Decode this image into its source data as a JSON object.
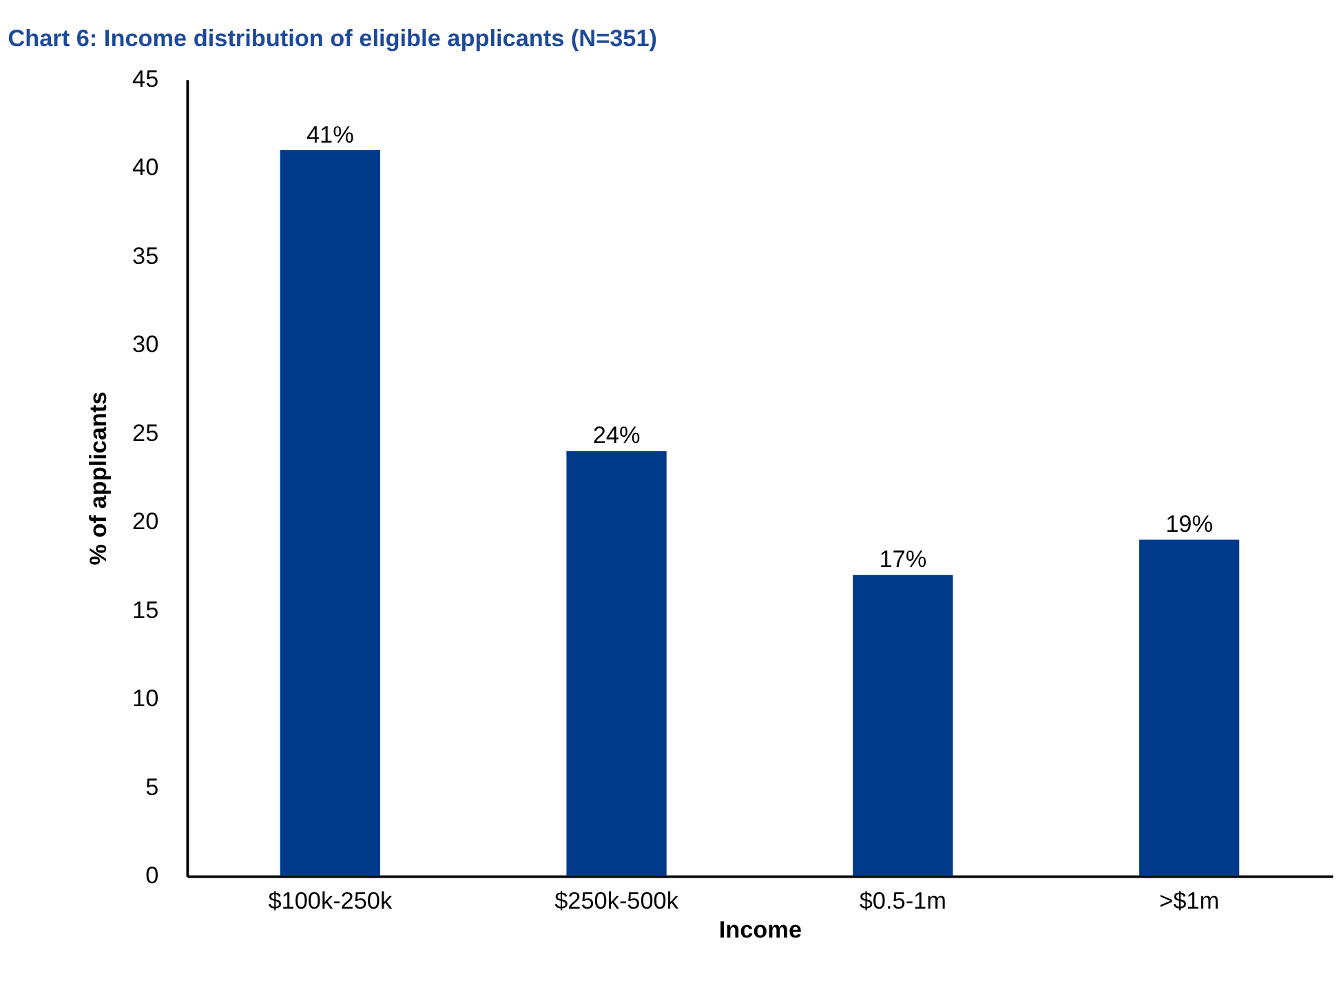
{
  "chart_data": {
    "type": "bar",
    "title": "Chart 6: Income distribution of eligible applicants (N=351)",
    "xlabel": "Income",
    "ylabel": "% of applicants",
    "categories": [
      "$100k-250k",
      "$250k-500k",
      "$0.5-1m",
      ">$1m"
    ],
    "values": [
      41,
      24,
      17,
      19
    ],
    "value_labels": [
      "41%",
      "24%",
      "17%",
      "19%"
    ],
    "color": "#003a8a",
    "ylim": [
      0,
      45
    ],
    "yticks": [
      0,
      5,
      10,
      15,
      20,
      25,
      30,
      35,
      40,
      45
    ],
    "grid": false
  }
}
